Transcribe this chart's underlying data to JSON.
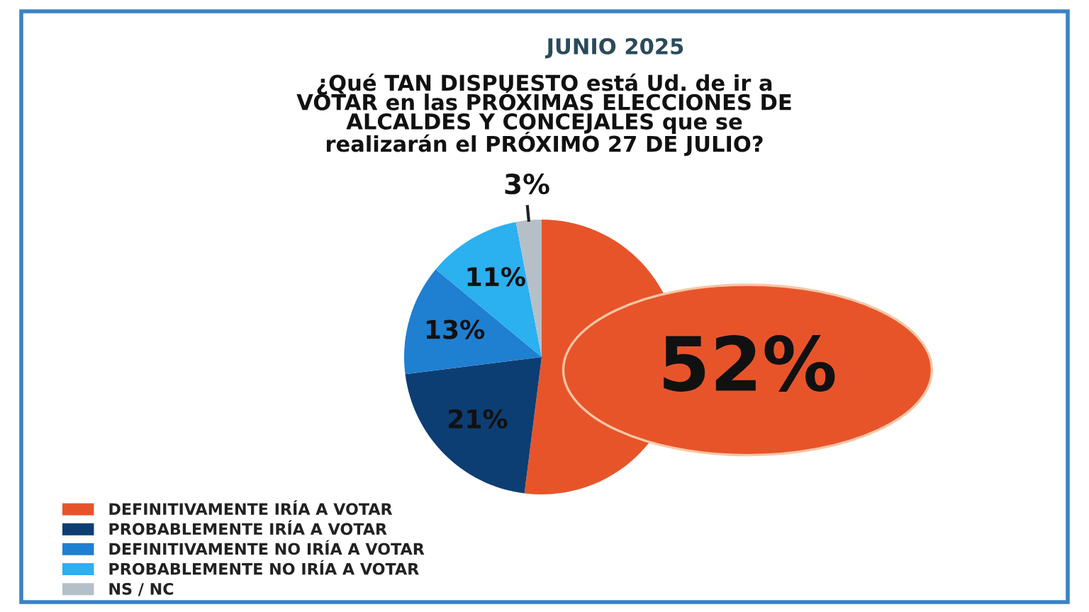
{
  "chart_data": {
    "type": "pie",
    "title": "¿Qué TAN DISPUESTO está Ud. de ir a\nVOTAR en las PRÓXIMAS ELECCIONES DE\nALCALDES Y CONCEJALES que se\nrealizarán el PRÓXIMO 27 DE JULIO?",
    "subtitle": "JUNIO 2025",
    "categories": [
      "DEFINITIVAMENTE IRÍA A VOTAR",
      "PROBABLEMENTE IRÍA A VOTAR",
      "DEFINITIVAMENTE NO IRÍA A VOTAR",
      "PROBABLEMENTE NO IRÍA A VOTAR",
      "NS / NC"
    ],
    "values": [
      52,
      21,
      13,
      11,
      3
    ],
    "colors": [
      "#e8542a",
      "#0d3e73",
      "#1f7fd1",
      "#2bb0f0",
      "#b5bfc8"
    ],
    "value_labels": [
      "52%",
      "21%",
      "13%",
      "11%",
      "3%"
    ],
    "legend": "bottom left"
  }
}
